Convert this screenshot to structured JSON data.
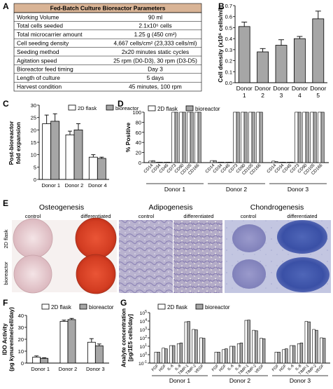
{
  "panel_labels": {
    "a": "A",
    "b": "B",
    "c": "C",
    "d": "D",
    "e": "E",
    "f": "F",
    "g": "G"
  },
  "table": {
    "title": "Fed-Batch Culture Bioreactor Parameters",
    "rows": [
      [
        "Working Volume",
        "90 ml"
      ],
      [
        "Total cells seeded",
        "2.1x10⁶ cells"
      ],
      [
        "Total microcarrier amount",
        "1.25 g (450 cm²)"
      ],
      [
        "Cell seeding density",
        "4,667 cells/cm² (23,333 cells/ml)"
      ],
      [
        "Seeding method",
        "2x20 minutes static cycles"
      ],
      [
        "Agitation speed",
        "25 rpm (D0-D3), 30 rpm (D3-D5)"
      ],
      [
        "Bioreactor feed timing",
        "Day 3"
      ],
      [
        "Length of culture",
        "5 days"
      ],
      [
        "Harvest condition",
        "45 minutes, 100 rpm"
      ]
    ]
  },
  "legend": {
    "s1": "2D flask",
    "s2": "bioreactor"
  },
  "colors": {
    "flask": "#ffffff",
    "bioreactor": "#a6a6a6",
    "border": "#000000",
    "header_bg": "#d9b496",
    "orange": "#d8452c",
    "blue": "#3b4fa8",
    "purple": "#8f86b8"
  },
  "panel_e": {
    "titles": [
      "Osteogenesis",
      "Adipogenesis",
      "Chondrogenesis"
    ],
    "conditions": [
      "control",
      "differentiated"
    ],
    "rows": [
      "2D flask",
      "bioreactor"
    ]
  },
  "chart_data": [
    {
      "id": "B",
      "type": "bar",
      "ylabel": "Cell density (x10⁶ cells/ml)",
      "yticks": [
        "0.0",
        "0.1",
        "0.2",
        "0.3",
        "0.4",
        "0.5",
        "0.6",
        "0.7"
      ],
      "ylim": [
        0,
        0.7
      ],
      "categories": [
        [
          "Donor",
          "1"
        ],
        [
          "Donor",
          "2"
        ],
        [
          "Donor",
          "3"
        ],
        [
          "Donor",
          "4"
        ],
        [
          "Donor",
          "5"
        ]
      ],
      "values": [
        0.51,
        0.28,
        0.34,
        0.4,
        0.58
      ],
      "errors": [
        0.04,
        0.03,
        0.05,
        0.02,
        0.07
      ]
    },
    {
      "id": "C",
      "type": "bar",
      "ylabel": "Post-bioreactor\nfold expansion",
      "yticks": [
        "0",
        "5",
        "10",
        "15",
        "20",
        "25",
        "30"
      ],
      "ylim": [
        0,
        30
      ],
      "categories": [
        "Donor 1",
        "Donor 2",
        "Donor 4"
      ],
      "series": [
        {
          "name": "2D flask",
          "values": [
            22.5,
            18.0,
            9.0
          ],
          "errors": [
            3.5,
            1.5,
            1.0
          ]
        },
        {
          "name": "bioreactor",
          "values": [
            23.5,
            20.0,
            8.5
          ],
          "errors": [
            3.0,
            2.5,
            0.5
          ]
        }
      ]
    },
    {
      "id": "D",
      "type": "bar",
      "ylabel": "% Positive",
      "yticks": [
        "0",
        "20",
        "40",
        "60",
        "80",
        "100"
      ],
      "ylim": [
        0,
        100
      ],
      "groups": [
        "Donor 1",
        "Donor 2",
        "Donor 3"
      ],
      "markers": [
        "CD14",
        "CD34",
        "CD45",
        "CD73",
        "CD90",
        "CD105",
        "CD166"
      ],
      "series": [
        {
          "name": "2D flask",
          "values": [
            [
              3,
              1,
              1,
              100,
              100,
              100,
              100
            ],
            [
              4,
              1,
              1,
              100,
              100,
              100,
              100
            ],
            [
              3,
              1,
              1,
              100,
              100,
              100,
              100
            ]
          ]
        },
        {
          "name": "bioreactor",
          "values": [
            [
              4,
              1,
              1,
              100,
              100,
              100,
              100
            ],
            [
              4,
              1,
              1,
              100,
              100,
              100,
              100
            ],
            [
              2,
              1,
              1,
              100,
              100,
              100,
              100
            ]
          ]
        }
      ]
    },
    {
      "id": "F",
      "type": "bar",
      "ylabel": "IDO Activity\n(pg kynurenine/cell/day)",
      "yticks": [
        "0",
        "10",
        "20",
        "30",
        "40"
      ],
      "ylim": [
        0,
        40
      ],
      "categories": [
        "Donor 1",
        "Donor 2",
        "Donor 3"
      ],
      "series": [
        {
          "name": "2D flask",
          "values": [
            5.0,
            35.0,
            17.5
          ],
          "errors": [
            1.0,
            1.0,
            3.0
          ]
        },
        {
          "name": "bioreactor",
          "values": [
            4.0,
            36.5,
            14.5
          ],
          "errors": [
            0.5,
            1.0,
            1.5
          ]
        }
      ]
    },
    {
      "id": "G",
      "type": "bar",
      "scale": "log",
      "ylabel": "Analyte concentration\n[pg/1E5 cells/day]",
      "ytick_exponents": [
        -1,
        0,
        1,
        2,
        3,
        4,
        5
      ],
      "groups": [
        "Donor 1",
        "Donor 2",
        "Donor 3"
      ],
      "analytes": [
        "FGF",
        "HGF",
        "IL-6",
        "IL-8",
        "TIMP-1",
        "TIMP-2",
        "VEGF"
      ],
      "series": [
        {
          "name": "2D flask",
          "values": [
            [
              2,
              6,
              12,
              20,
              8000,
              1000,
              100
            ],
            [
              2,
              4,
              10,
              20,
              12000,
              800,
              90
            ],
            [
              2,
              4,
              12,
              20,
              9000,
              1000,
              100
            ]
          ]
        },
        {
          "name": "bioreactor",
          "values": [
            [
              2,
              5,
              12,
              25,
              9000,
              900,
              90
            ],
            [
              2,
              5,
              10,
              25,
              13000,
              700,
              80
            ],
            [
              2,
              5,
              12,
              25,
              8000,
              800,
              90
            ]
          ]
        }
      ]
    }
  ]
}
